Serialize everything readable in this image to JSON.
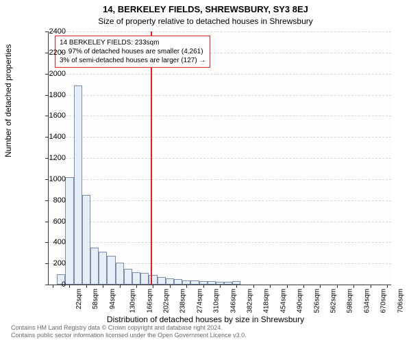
{
  "titles": {
    "line1": "14, BERKELEY FIELDS, SHREWSBURY, SY3 8EJ",
    "line2": "Size of property relative to detached houses in Shrewsbury"
  },
  "axes": {
    "ylabel": "Number of detached properties",
    "xlabel": "Distribution of detached houses by size in Shrewsbury",
    "ymax": 2400,
    "ytick_step": 200,
    "yticks": [
      0,
      200,
      400,
      600,
      800,
      1000,
      1200,
      1400,
      1600,
      1800,
      2000,
      2200,
      2400
    ],
    "x_start": 22,
    "x_step": 18,
    "n_bars": 41,
    "xtick_every": 2,
    "x_unit": "sqm"
  },
  "style": {
    "bar_fill": "#e8eef7",
    "bar_border": "#7a8ca8",
    "grid_color": "#d6d6d6",
    "axis_color": "#333333",
    "ref_color": "#e02020",
    "background": "#ffffff",
    "title_fontsize": 13,
    "subtitle_fontsize": 12,
    "label_fontsize": 12,
    "tick_fontsize": 11,
    "xtick_fontsize": 10,
    "annot_fontsize": 10,
    "footer_color": "#6a6a6a",
    "footer_fontsize": 9
  },
  "annotation": {
    "l1": "14 BERKELEY FIELDS: 233sqm",
    "l2": "← 97% of detached houses are smaller (4,261)",
    "l3": "3% of semi-detached houses are larger (127) →"
  },
  "reference": {
    "value_sqm": 233
  },
  "bars": {
    "values": [
      0,
      100,
      1020,
      1890,
      850,
      350,
      310,
      270,
      210,
      150,
      120,
      110,
      90,
      70,
      60,
      50,
      40,
      40,
      35,
      30,
      25,
      25,
      30,
      0,
      0,
      0,
      0,
      0,
      0,
      0,
      0,
      0,
      0,
      0,
      0,
      0,
      0,
      0,
      0,
      0,
      0
    ]
  },
  "footer": {
    "l1": "Contains HM Land Registry data © Crown copyright and database right 2024.",
    "l2": "Contains public sector information licensed under the Open Government Licence v3.0."
  }
}
